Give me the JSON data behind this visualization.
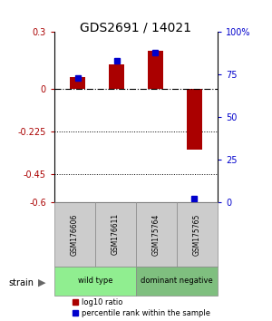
{
  "title": "GDS2691 / 14021",
  "samples": [
    "GSM176606",
    "GSM176611",
    "GSM175764",
    "GSM175765"
  ],
  "log10_ratio": [
    0.06,
    0.13,
    0.2,
    -0.32
  ],
  "percentile_rank": [
    73,
    83,
    88,
    2
  ],
  "groups": [
    {
      "label": "wild type",
      "samples": [
        0,
        1
      ],
      "color": "#90EE90"
    },
    {
      "label": "dominant negative",
      "samples": [
        2,
        3
      ],
      "color": "#7FBF7F"
    }
  ],
  "bar_color": "#aa0000",
  "dot_color": "#0000cc",
  "ylim_left": [
    -0.6,
    0.3
  ],
  "yticks_left": [
    0.3,
    0,
    -0.225,
    -0.45,
    -0.6
  ],
  "ytick_labels_left": [
    "0.3",
    "0",
    "-0.225",
    "-0.45",
    "-0.6"
  ],
  "ylim_right": [
    0,
    100
  ],
  "yticks_right": [
    100,
    75,
    50,
    25,
    0
  ],
  "ytick_labels_right": [
    "100%",
    "75",
    "50",
    "25",
    "0"
  ],
  "hline_y": 0,
  "dotted_lines": [
    -0.225,
    -0.45
  ],
  "legend_red_label": "log10 ratio",
  "legend_blue_label": "percentile rank within the sample",
  "strain_label": "strain",
  "background_color": "#ffffff",
  "plot_bg_color": "#ffffff",
  "sample_box_color": "#cccccc",
  "sample_box_edge": "#888888"
}
